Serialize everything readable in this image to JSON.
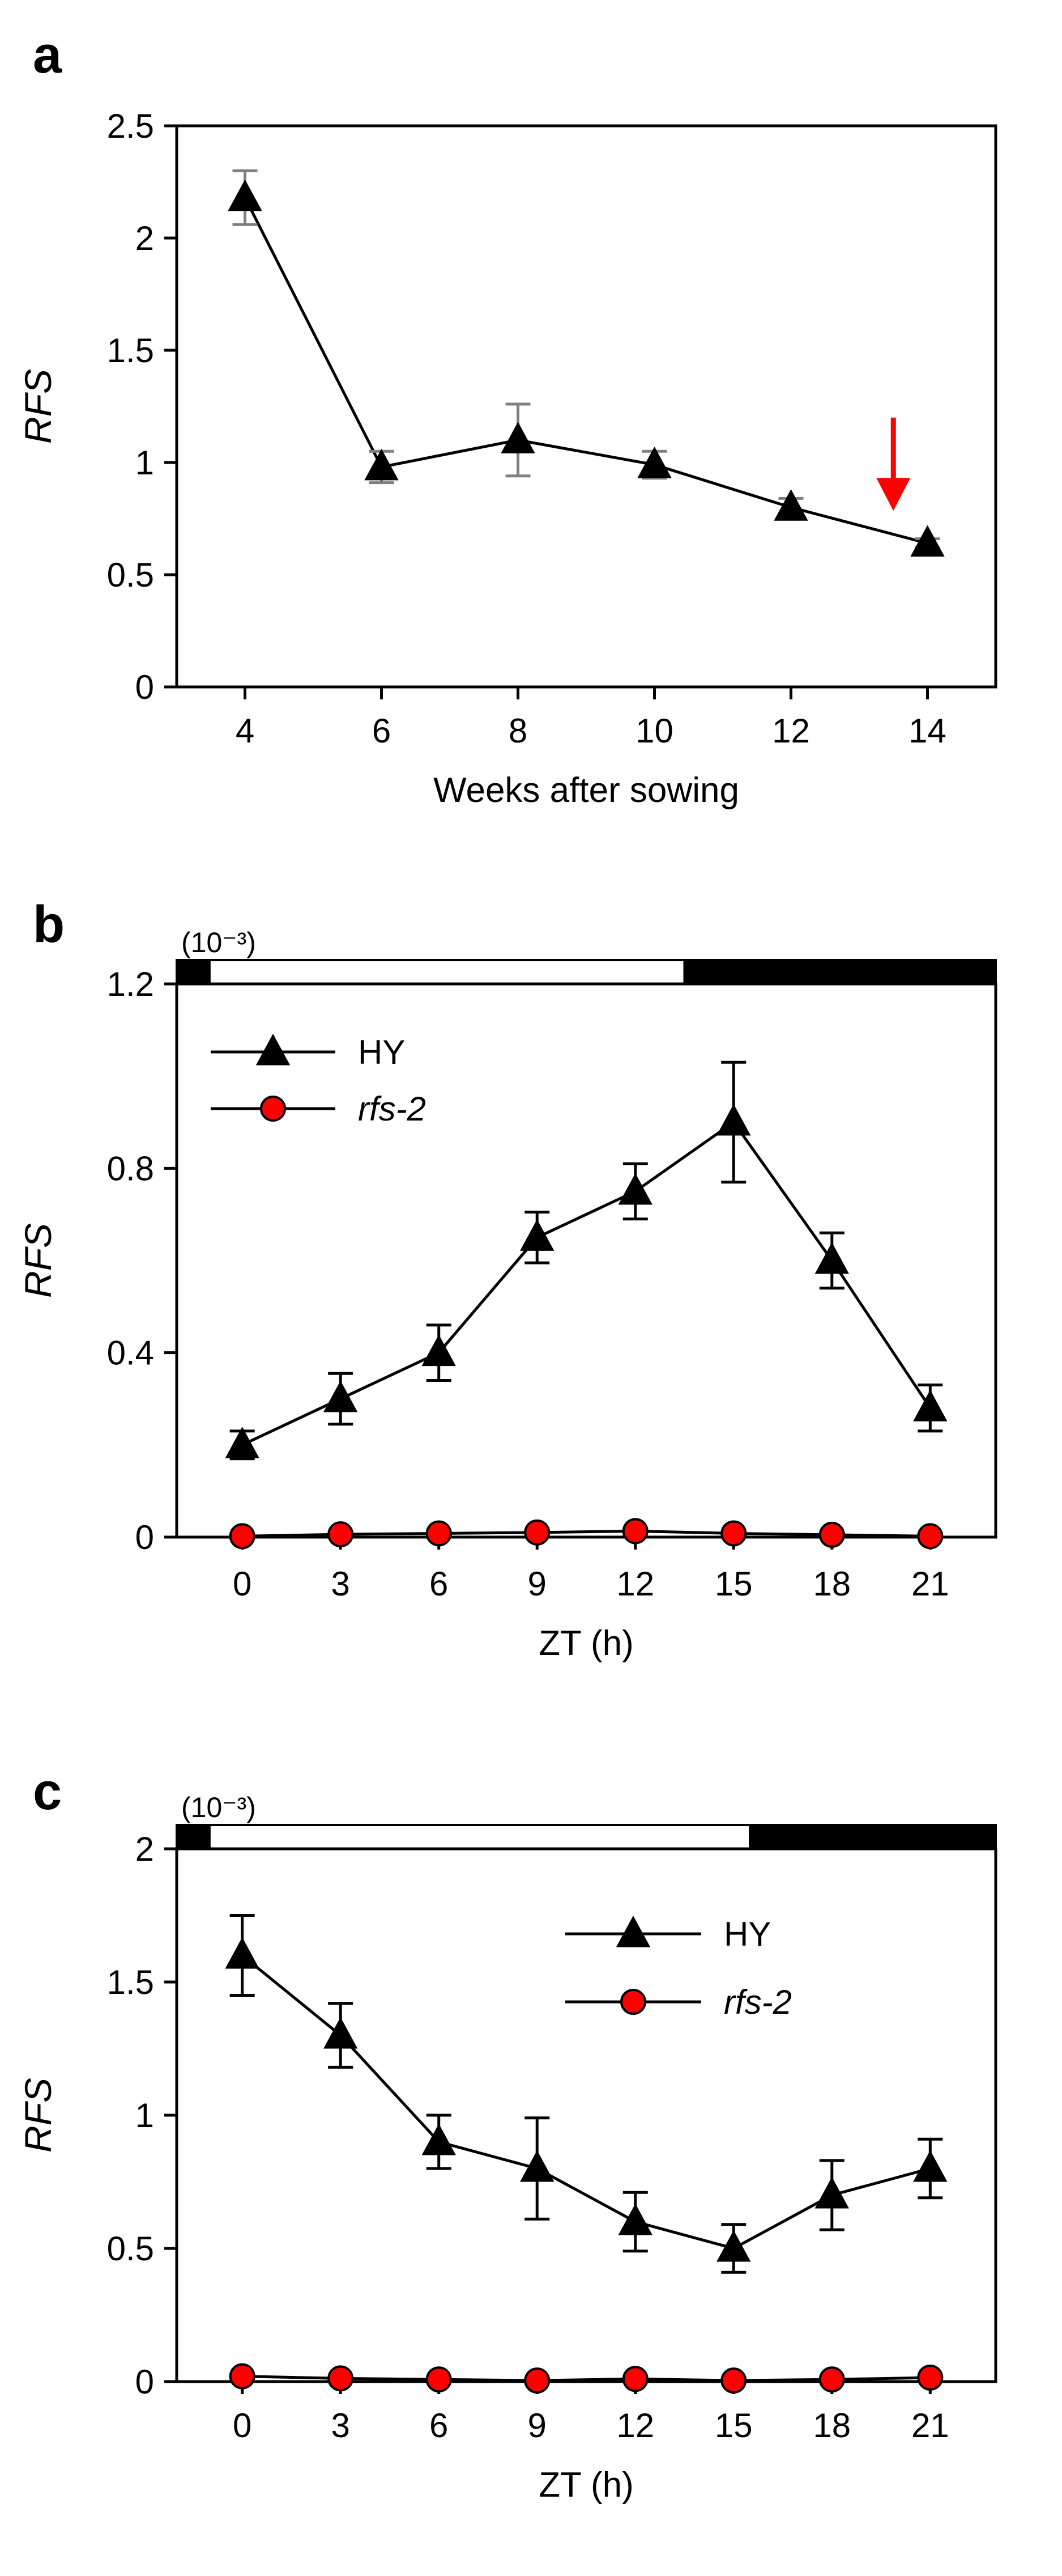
{
  "chart_data": [
    {
      "panel": "a",
      "type": "line",
      "title": "",
      "xlabel": "Weeks after sowing",
      "ylabel": "RFS",
      "xlim": [
        3,
        15
      ],
      "ylim": [
        0,
        2.5
      ],
      "xticks": [
        "4",
        "6",
        "8",
        "10",
        "12",
        "14"
      ],
      "yticks": [
        "0",
        "0.5",
        "1",
        "1.5",
        "2",
        "2.5"
      ],
      "series": [
        {
          "name": "RFS",
          "marker": "triangle",
          "color": "#000000",
          "errorbar_color": "#7f7f7f",
          "x": [
            4,
            6,
            8,
            10,
            12,
            14
          ],
          "values": [
            2.18,
            0.98,
            1.1,
            0.99,
            0.8,
            0.64
          ],
          "errors": [
            0.12,
            0.07,
            0.16,
            0.06,
            0.04,
            0.02
          ]
        }
      ],
      "annotations": [
        {
          "type": "arrow",
          "color": "#ff0000",
          "x": 13.5,
          "y_from": 1.2,
          "y_to": 0.8,
          "direction": "down"
        }
      ],
      "legend": null
    },
    {
      "panel": "b",
      "type": "line",
      "title": "",
      "xlabel": "ZT (h)",
      "ylabel": "RFS",
      "scale_note": "(10⁻³)",
      "xlim": [
        -2,
        23
      ],
      "ylim": [
        0,
        1.2
      ],
      "xticks": [
        "0",
        "3",
        "6",
        "9",
        "12",
        "15",
        "18",
        "21"
      ],
      "yticks": [
        "0",
        "0.4",
        "0.8",
        "1.2"
      ],
      "light_bar": [
        {
          "from": -2,
          "to": -1,
          "state": "dark"
        },
        {
          "from": -1,
          "to": 13.5,
          "state": "light"
        },
        {
          "from": 13.5,
          "to": 23,
          "state": "dark"
        }
      ],
      "legend": "top-left",
      "series": [
        {
          "name": "HY",
          "italic": false,
          "marker": "triangle",
          "color": "#000000",
          "x": [
            0,
            3,
            6,
            9,
            12,
            15,
            18,
            21
          ],
          "values": [
            0.2,
            0.3,
            0.4,
            0.65,
            0.75,
            0.9,
            0.6,
            0.28
          ],
          "errors": [
            0.03,
            0.055,
            0.06,
            0.055,
            0.06,
            0.13,
            0.06,
            0.05
          ]
        },
        {
          "name": "rfs-2",
          "italic": true,
          "marker": "circle",
          "color": "#ff0000",
          "x": [
            0,
            3,
            6,
            9,
            12,
            15,
            18,
            21
          ],
          "values": [
            0.002,
            0.006,
            0.008,
            0.01,
            0.013,
            0.008,
            0.005,
            0.002
          ],
          "errors": [
            0,
            0,
            0,
            0,
            0,
            0,
            0,
            0
          ]
        }
      ]
    },
    {
      "panel": "c",
      "type": "line",
      "title": "",
      "xlabel": "ZT (h)",
      "ylabel": "RFS",
      "scale_note": "(10⁻³)",
      "xlim": [
        -2,
        23
      ],
      "ylim": [
        0,
        2
      ],
      "xticks": [
        "0",
        "3",
        "6",
        "9",
        "12",
        "15",
        "18",
        "21"
      ],
      "yticks": [
        "0",
        "0.5",
        "1",
        "1.5",
        "2"
      ],
      "light_bar": [
        {
          "from": -2,
          "to": -1,
          "state": "dark"
        },
        {
          "from": -1,
          "to": 15.5,
          "state": "light"
        },
        {
          "from": 15.5,
          "to": 23,
          "state": "dark"
        }
      ],
      "legend": "top-right",
      "series": [
        {
          "name": "HY",
          "italic": false,
          "marker": "triangle",
          "color": "#000000",
          "x": [
            0,
            3,
            6,
            9,
            12,
            15,
            18,
            21
          ],
          "values": [
            1.6,
            1.3,
            0.9,
            0.8,
            0.6,
            0.5,
            0.7,
            0.8
          ],
          "errors": [
            0.15,
            0.12,
            0.1,
            0.19,
            0.11,
            0.09,
            0.13,
            0.11
          ]
        },
        {
          "name": "rfs-2",
          "italic": true,
          "marker": "circle",
          "color": "#ff0000",
          "x": [
            0,
            3,
            6,
            9,
            12,
            15,
            18,
            21
          ],
          "values": [
            0.02,
            0.012,
            0.008,
            0.004,
            0.01,
            0.004,
            0.008,
            0.015
          ],
          "errors": [
            0,
            0,
            0,
            0,
            0,
            0,
            0,
            0
          ]
        }
      ]
    }
  ]
}
